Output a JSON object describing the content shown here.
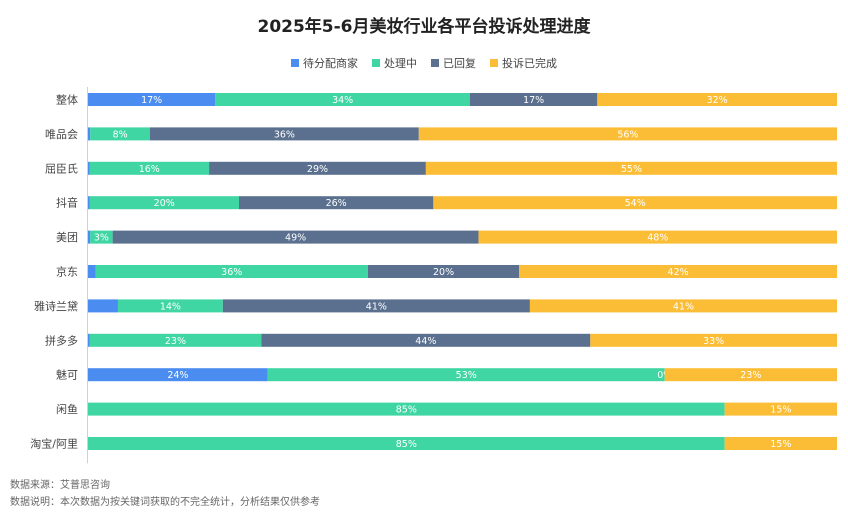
{
  "header": {
    "title": "2025年5-6月美妆行业各平台投诉处理进度"
  },
  "footer": {
    "source": "数据来源：艾普思咨询",
    "note": "数据说明：本次数据为按关键词获取的不完全统计，分析结果仅供参考"
  },
  "chart_data": {
    "type": "bar",
    "orientation": "horizontal",
    "stacked": true,
    "percent_stacked": true,
    "title": "2025年5-6月美妆行业各平台投诉处理进度",
    "legend_position": "top",
    "grid": false,
    "categories": [
      "整体",
      "唯品会",
      "屈臣氏",
      "抖音",
      "美团",
      "京东",
      "雅诗兰黛",
      "拼多多",
      "魅可",
      "闲鱼",
      "淘宝/阿里"
    ],
    "series": [
      {
        "name": "待分配商家",
        "color": "#4a8cf0",
        "values": [
          17,
          0.3,
          0.2,
          0.2,
          0.3,
          1,
          4,
          0.2,
          24,
          0,
          0
        ],
        "labels": [
          "17%",
          "",
          "",
          "",
          "",
          "",
          "",
          "",
          "24%",
          "",
          ""
        ]
      },
      {
        "name": "处理中",
        "color": "#40d6a3",
        "values": [
          34,
          8,
          16,
          20,
          3,
          36,
          14,
          23,
          53,
          85,
          85
        ],
        "labels": [
          "34%",
          "8%",
          "16%",
          "20%",
          "3%",
          "36%",
          "14%",
          "23%",
          "53%",
          "85%",
          "85%"
        ]
      },
      {
        "name": "已回复",
        "color": "#5a708e",
        "values": [
          17,
          36,
          29,
          26,
          49,
          20,
          41,
          44,
          0,
          0,
          0
        ],
        "labels": [
          "17%",
          "36%",
          "29%",
          "26%",
          "49%",
          "20%",
          "41%",
          "44%",
          "0%",
          "",
          ""
        ]
      },
      {
        "name": "投诉已完成",
        "color": "#fbbd35",
        "values": [
          32,
          56,
          55,
          54,
          48,
          42,
          41,
          33,
          23,
          15,
          15
        ],
        "labels": [
          "32%",
          "56%",
          "55%",
          "54%",
          "48%",
          "42%",
          "41%",
          "33%",
          "23%",
          "15%",
          "15%"
        ]
      }
    ],
    "xlim": [
      0,
      100
    ]
  }
}
